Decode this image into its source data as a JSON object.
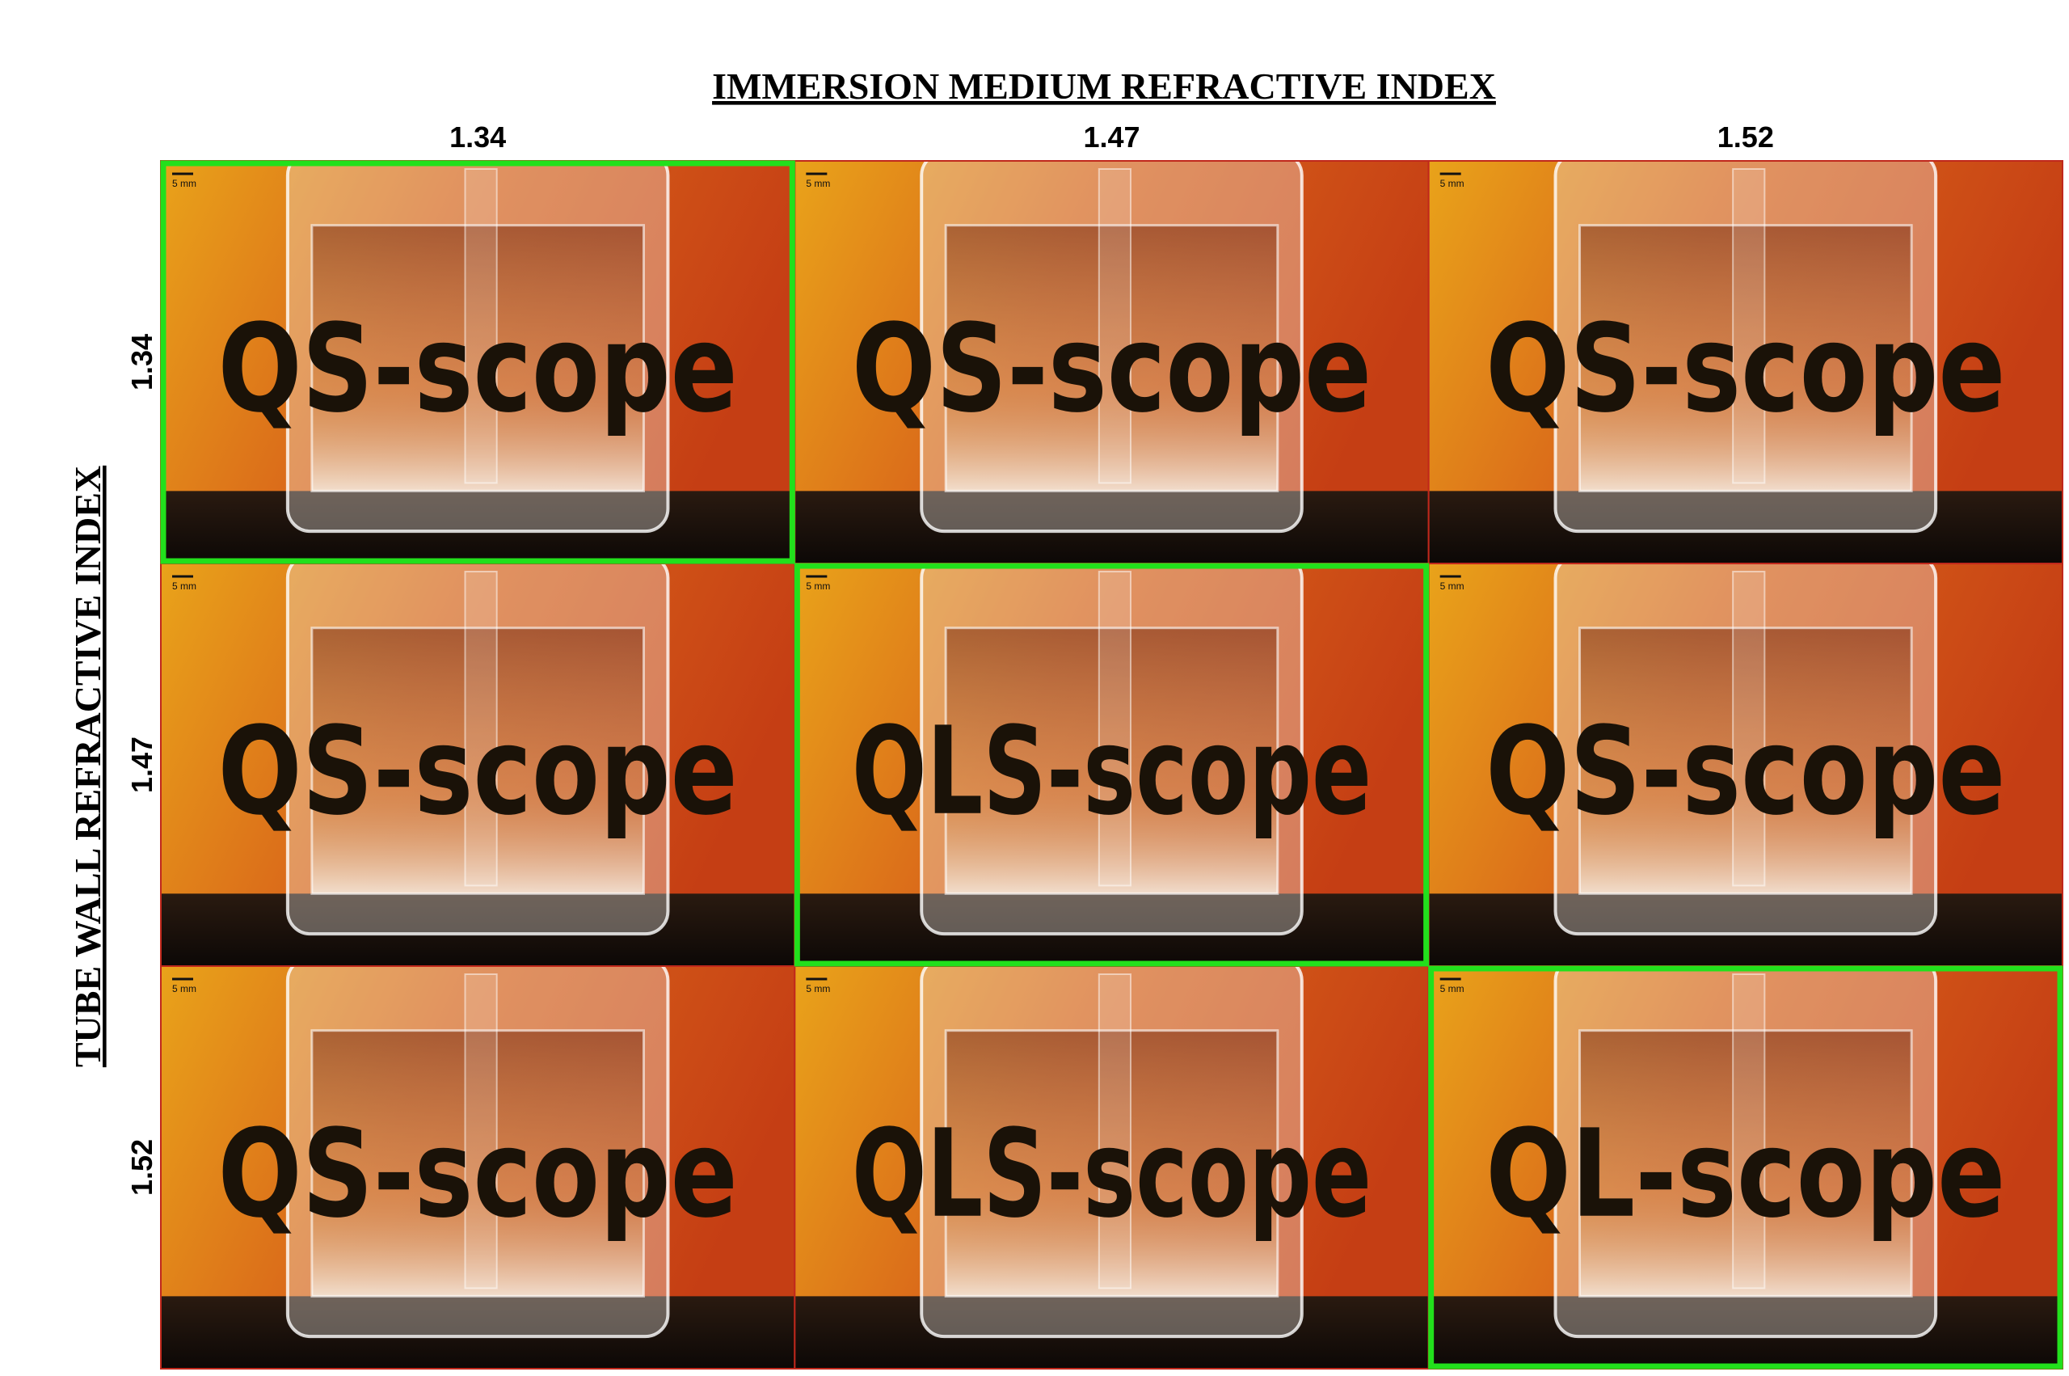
{
  "column_axis": {
    "title": "IMMERSION MEDIUM REFRACTIVE INDEX",
    "labels": [
      "1.34",
      "1.47",
      "1.52"
    ]
  },
  "row_axis": {
    "title": "TUBE WALL REFRACTIVE INDEX",
    "labels": [
      "1.34",
      "1.47",
      "1.52"
    ]
  },
  "cells": [
    [
      {
        "scale_label": "5 mm",
        "logo": "QS-scope",
        "highlighted": true
      },
      {
        "scale_label": "5 mm",
        "logo": "QS-scope",
        "highlighted": false
      },
      {
        "scale_label": "5 mm",
        "logo": "QS-scope",
        "highlighted": false
      }
    ],
    [
      {
        "scale_label": "5 mm",
        "logo": "QS-scope",
        "highlighted": false
      },
      {
        "scale_label": "5 mm",
        "logo": "QLS-scope",
        "highlighted": true
      },
      {
        "scale_label": "5 mm",
        "logo": "QS-scope",
        "highlighted": false
      }
    ],
    [
      {
        "scale_label": "5 mm",
        "logo": "QS-scope",
        "highlighted": false
      },
      {
        "scale_label": "5 mm",
        "logo": "QLS-scope",
        "highlighted": false
      },
      {
        "scale_label": "5 mm",
        "logo": "QL-scope",
        "highlighted": true
      }
    ]
  ]
}
